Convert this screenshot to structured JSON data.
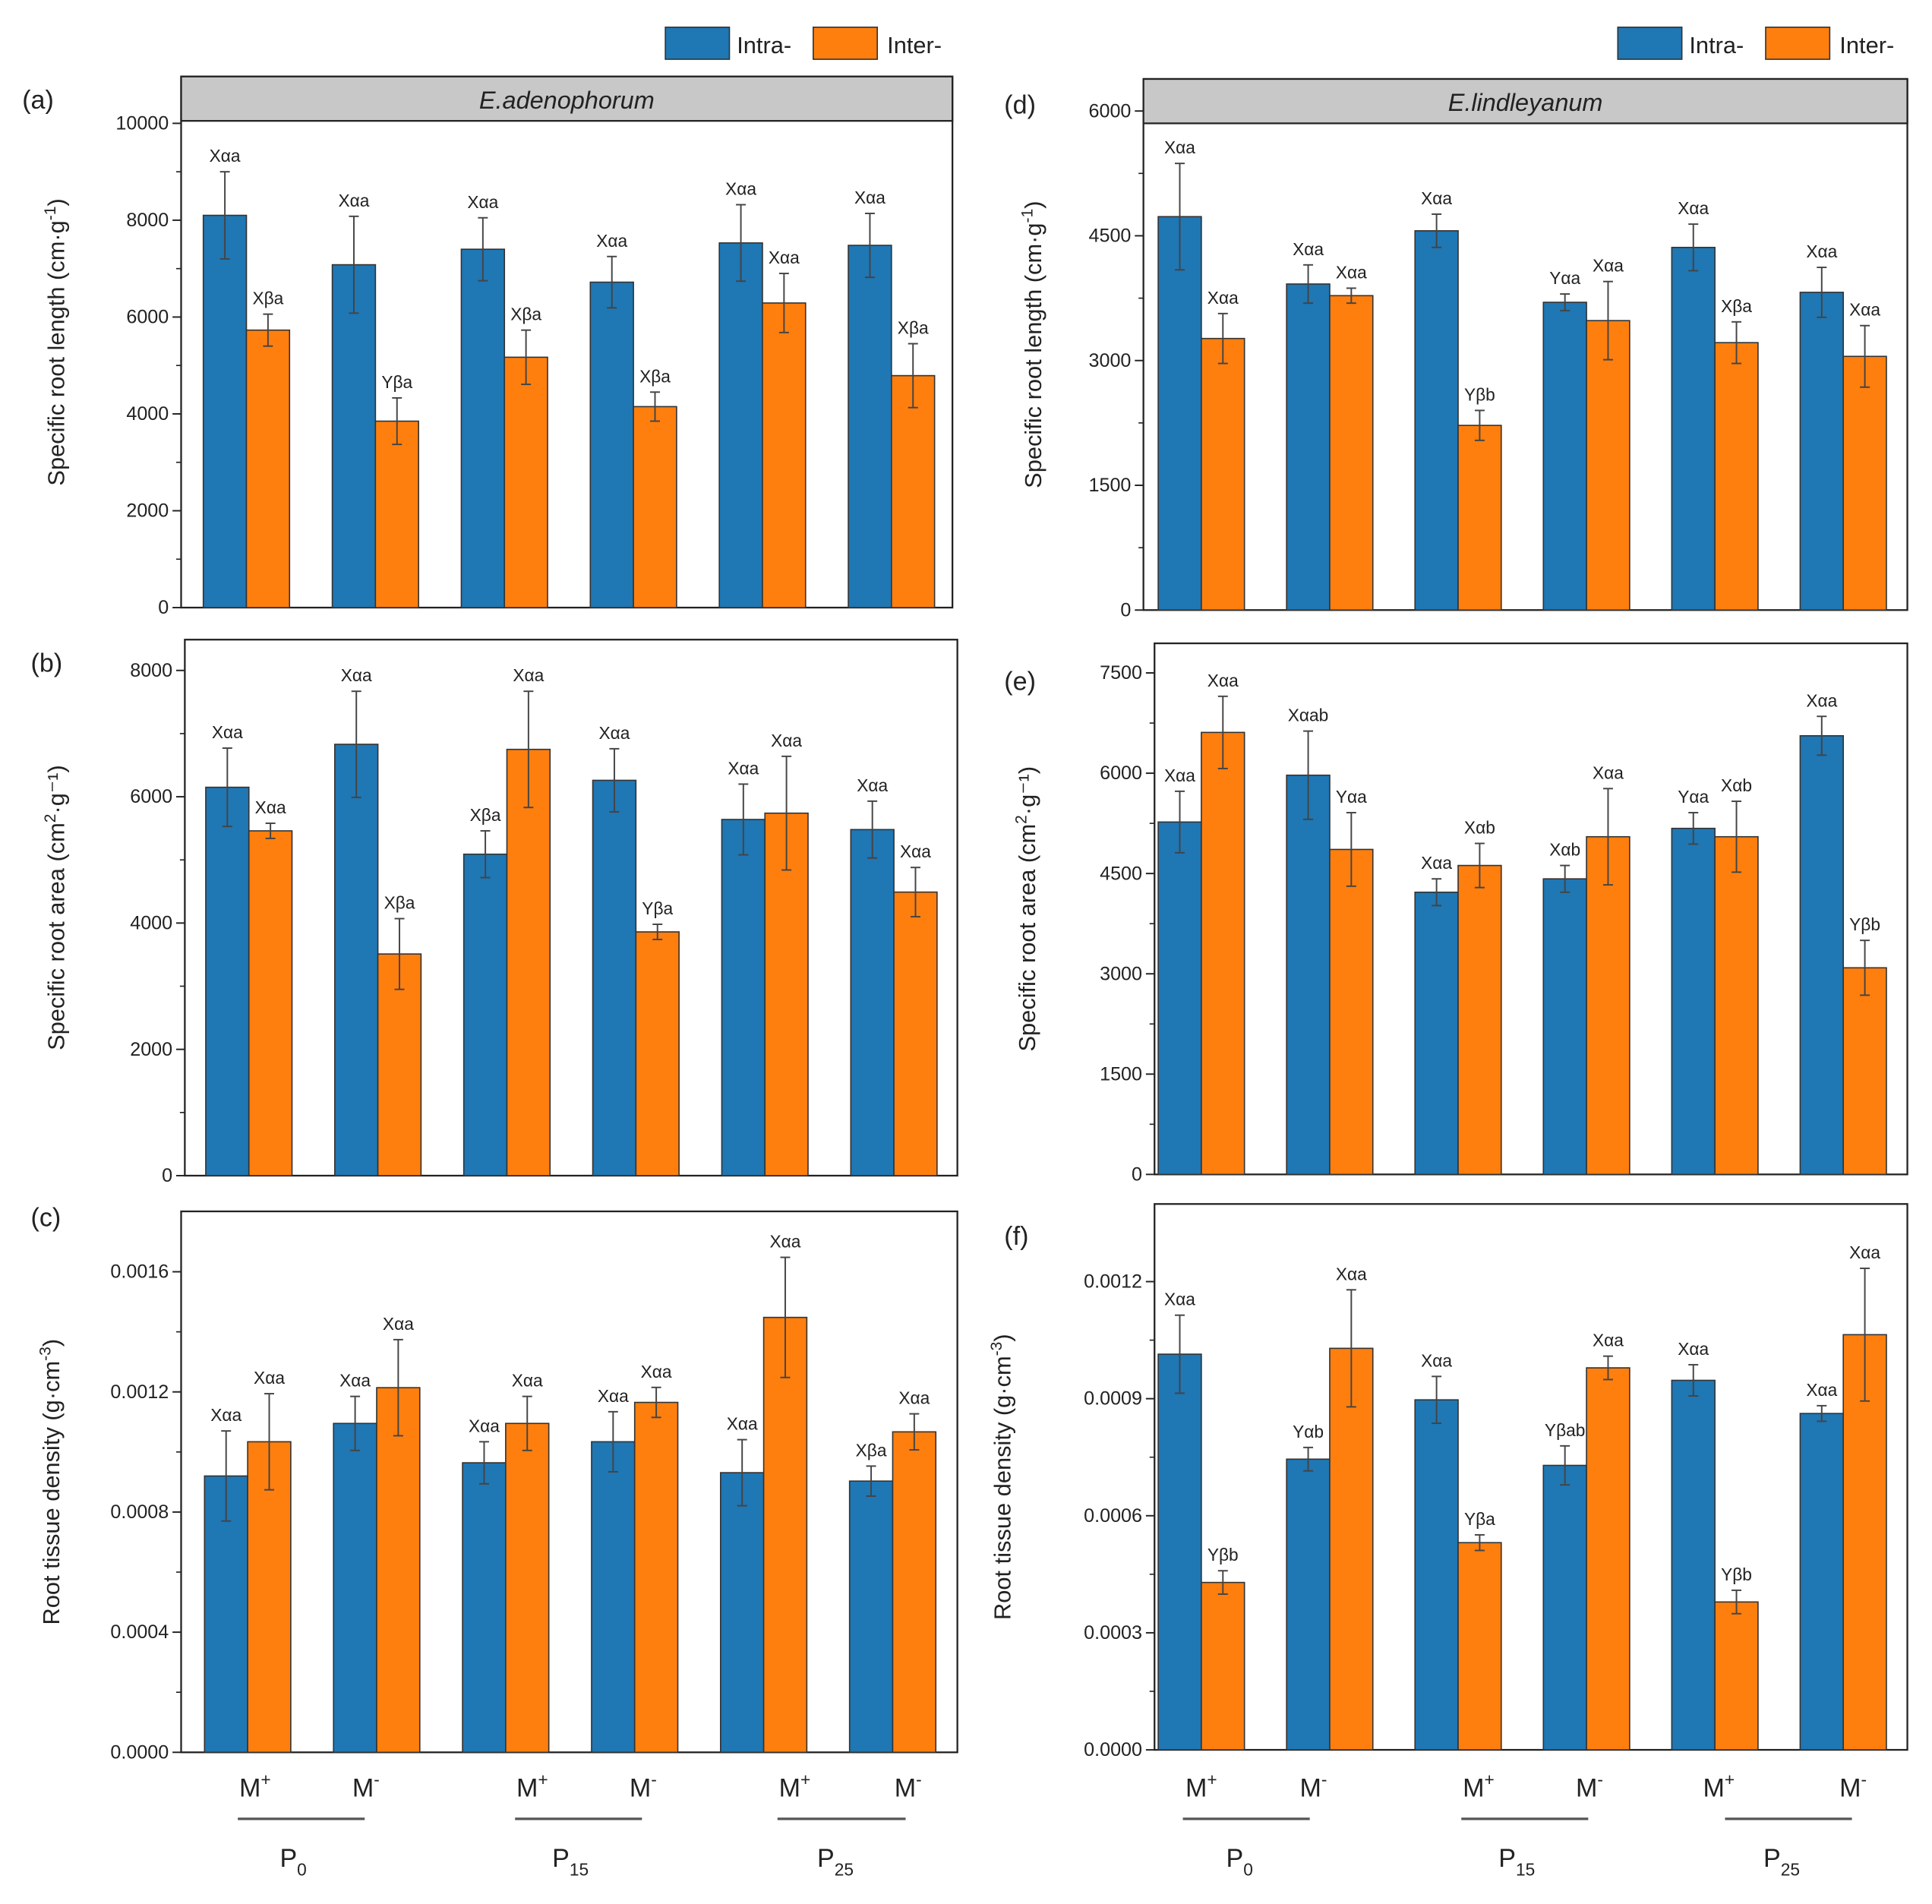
{
  "legend": {
    "intra": "Intra-",
    "inter": "Inter-",
    "intra_color": "#1f77b4",
    "inter_color": "#ff7f0e"
  },
  "x_axis": {
    "groups": [
      {
        "m1": "M",
        "m1_sup": "+",
        "m2": "M",
        "m2_sup": "-",
        "p": "P",
        "p_sub": "0"
      },
      {
        "m1": "M",
        "m1_sup": "+",
        "m2": "M",
        "m2_sup": "-",
        "p": "P",
        "p_sub": "15"
      },
      {
        "m1": "M",
        "m1_sup": "+",
        "m2": "M",
        "m2_sup": "-",
        "p": "P",
        "p_sub": "25"
      }
    ]
  },
  "chart_data": [
    {
      "type": "bar",
      "panel": "(a)",
      "strip": "E.adenophorum",
      "ylabel": "Specific root length (cm·g",
      "ylabel_sup": "-1",
      "ylabel_end": ")",
      "ylim": [
        0,
        10000
      ],
      "yticks": [
        0,
        2000,
        4000,
        6000,
        8000,
        10000
      ],
      "ytick_labels": [
        "0",
        "2000",
        "4000",
        "6000",
        "8000",
        "10000"
      ],
      "categories": [
        "P0 M+",
        "P0 M-",
        "P15 M+",
        "P15 M-",
        "P25 M+",
        "P25 M-"
      ],
      "series": [
        {
          "name": "Intra-",
          "values": [
            8100,
            7080,
            7400,
            6720,
            7530,
            7480
          ],
          "errors": [
            900,
            1000,
            650,
            530,
            790,
            660
          ],
          "labels": [
            "Xαa",
            "Xαa",
            "Xαa",
            "Xαa",
            "Xαa",
            "Xαa"
          ]
        },
        {
          "name": "Inter-",
          "values": [
            5730,
            3850,
            5170,
            4150,
            6290,
            4790
          ],
          "errors": [
            330,
            480,
            560,
            300,
            610,
            660
          ],
          "labels": [
            "Xβa",
            "Yβa",
            "Xβa",
            "Xβa",
            "Xαa",
            "Xβa"
          ]
        }
      ]
    },
    {
      "type": "bar",
      "panel": "(b)",
      "strip": "",
      "ylabel": "Specific root area (cm",
      "ylabel_sup": "2",
      "ylabel_end": "·g⁻¹)",
      "ylim": [
        0,
        8000
      ],
      "yticks": [
        0,
        2000,
        4000,
        6000,
        8000
      ],
      "ytick_labels": [
        "0",
        "2000",
        "4000",
        "6000",
        "8000"
      ],
      "categories": [
        "P0 M+",
        "P0 M-",
        "P15 M+",
        "P15 M-",
        "P25 M+",
        "P25 M-"
      ],
      "series": [
        {
          "name": "Intra-",
          "values": [
            6150,
            6830,
            5090,
            6260,
            5640,
            5480
          ],
          "errors": [
            620,
            840,
            370,
            500,
            560,
            450
          ],
          "labels": [
            "Xαa",
            "Xαa",
            "Xβa",
            "Xαa",
            "Xαa",
            "Xαa"
          ]
        },
        {
          "name": "Inter-",
          "values": [
            5460,
            3510,
            6750,
            3860,
            5740,
            4490
          ],
          "errors": [
            120,
            560,
            920,
            120,
            900,
            390
          ],
          "labels": [
            "Xαa",
            "Xβa",
            "Xαa",
            "Yβa",
            "Xαa",
            "Xαa"
          ]
        }
      ]
    },
    {
      "type": "bar",
      "panel": "(c)",
      "strip": "",
      "ylabel": "Root tissue density (g·cm",
      "ylabel_sup": "-3",
      "ylabel_end": ")",
      "ylim": [
        0,
        0.0016
      ],
      "yticks": [
        0,
        0.0004,
        0.0008,
        0.0012,
        0.0016
      ],
      "ytick_labels": [
        "0.0000",
        "0.0004",
        "0.0008",
        "0.0012",
        "0.0016"
      ],
      "categories": [
        "P0 M+",
        "P0 M-",
        "P15 M+",
        "P15 M-",
        "P25 M+",
        "P25 M-"
      ],
      "series": [
        {
          "name": "Intra-",
          "values": [
            0.00092,
            0.001095,
            0.000964,
            0.001034,
            0.000931,
            0.000903
          ],
          "errors": [
            0.00015,
            9e-05,
            7e-05,
            0.0001,
            0.00011,
            5e-05
          ],
          "labels": [
            "Xαa",
            "Xαa",
            "Xαa",
            "Xαa",
            "Xαa",
            "Xβa"
          ]
        },
        {
          "name": "Inter-",
          "values": [
            0.001034,
            0.001214,
            0.001095,
            0.001165,
            0.001448,
            0.001067
          ],
          "errors": [
            0.00016,
            0.00016,
            9e-05,
            5e-05,
            0.0002,
            6e-05
          ],
          "labels": [
            "Xαa",
            "Xαa",
            "Xαa",
            "Xαa",
            "Xαa",
            "Xαa"
          ]
        }
      ]
    },
    {
      "type": "bar",
      "panel": "(d)",
      "strip": "E.lindleyanum",
      "ylabel": "Specific root length (cm·g",
      "ylabel_sup": "-1",
      "ylabel_end": ")",
      "ylim": [
        0,
        6000
      ],
      "yticks": [
        0,
        1500,
        3000,
        4500,
        6000
      ],
      "ytick_labels": [
        "0",
        "1500",
        "3000",
        "4500",
        "6000"
      ],
      "categories": [
        "P0 M+",
        "P0 M-",
        "P15 M+",
        "P15 M-",
        "P25 M+",
        "P25 M-"
      ],
      "series": [
        {
          "name": "Intra-",
          "values": [
            4730,
            3920,
            4560,
            3700,
            4360,
            3820
          ],
          "errors": [
            640,
            230,
            200,
            100,
            280,
            300
          ],
          "labels": [
            "Xαa",
            "Xαa",
            "Xαa",
            "Yαa",
            "Xαa",
            "Xαa"
          ]
        },
        {
          "name": "Inter-",
          "values": [
            3265,
            3780,
            2220,
            3480,
            3215,
            3050
          ],
          "errors": [
            300,
            90,
            180,
            470,
            250,
            370
          ],
          "labels": [
            "Xαa",
            "Xαa",
            "Yβb",
            "Xαa",
            "Xβa",
            "Xαa"
          ]
        }
      ]
    },
    {
      "type": "bar",
      "panel": "(e)",
      "strip": "",
      "ylabel": "Specific root area (cm",
      "ylabel_sup": "2",
      "ylabel_end": "·g⁻¹)",
      "ylim": [
        0,
        7500
      ],
      "yticks": [
        0,
        1500,
        3000,
        4500,
        6000,
        7500
      ],
      "ytick_labels": [
        "0",
        "1500",
        "3000",
        "4500",
        "6000",
        "7500"
      ],
      "categories": [
        "P0 M+",
        "P0 M-",
        "P15 M+",
        "P15 M-",
        "P25 M+",
        "P25 M-"
      ],
      "series": [
        {
          "name": "Intra-",
          "values": [
            5270,
            5970,
            4220,
            4420,
            5175,
            6560
          ],
          "errors": [
            460,
            660,
            200,
            200,
            235,
            290
          ],
          "labels": [
            "Xαa",
            "Xαab",
            "Xαa",
            "Xαb",
            "Yαa",
            "Xαa"
          ]
        },
        {
          "name": "Inter-",
          "values": [
            6610,
            4860,
            4620,
            5050,
            5050,
            3090
          ],
          "errors": [
            540,
            550,
            330,
            720,
            530,
            410
          ],
          "labels": [
            "Xαa",
            "Yαa",
            "Xαb",
            "Xαa",
            "Xαb",
            "Yβb"
          ]
        }
      ]
    },
    {
      "type": "bar",
      "panel": "(f)",
      "strip": "",
      "ylabel": "Root tissue density (g·cm",
      "ylabel_sup": "-3",
      "ylabel_end": ")",
      "ylim": [
        0,
        0.0012
      ],
      "yticks": [
        0,
        0.0003,
        0.0006,
        0.0009,
        0.0012
      ],
      "ytick_labels": [
        "0.0000",
        "0.0003",
        "0.0006",
        "0.0009",
        "0.0012"
      ],
      "categories": [
        "P0 M+",
        "P0 M-",
        "P15 M+",
        "P15 M-",
        "P25 M+",
        "P25 M-"
      ],
      "series": [
        {
          "name": "Intra-",
          "values": [
            0.001014,
            0.000745,
            0.000897,
            0.000729,
            0.000947,
            0.000862
          ],
          "errors": [
            0.0001,
            3e-05,
            6e-05,
            5e-05,
            4e-05,
            2e-05
          ],
          "labels": [
            "Xαa",
            "Yαb",
            "Xαa",
            "Yβab",
            "Xαa",
            "Xαa"
          ]
        },
        {
          "name": "Inter-",
          "values": [
            0.000429,
            0.001029,
            0.000531,
            0.000979,
            0.000379,
            0.001064
          ],
          "errors": [
            3e-05,
            0.00015,
            2e-05,
            3e-05,
            3e-05,
            0.00017
          ],
          "labels": [
            "Yβb",
            "Xαa",
            "Yβa",
            "Xαa",
            "Yβb",
            "Xαa"
          ]
        }
      ]
    }
  ]
}
